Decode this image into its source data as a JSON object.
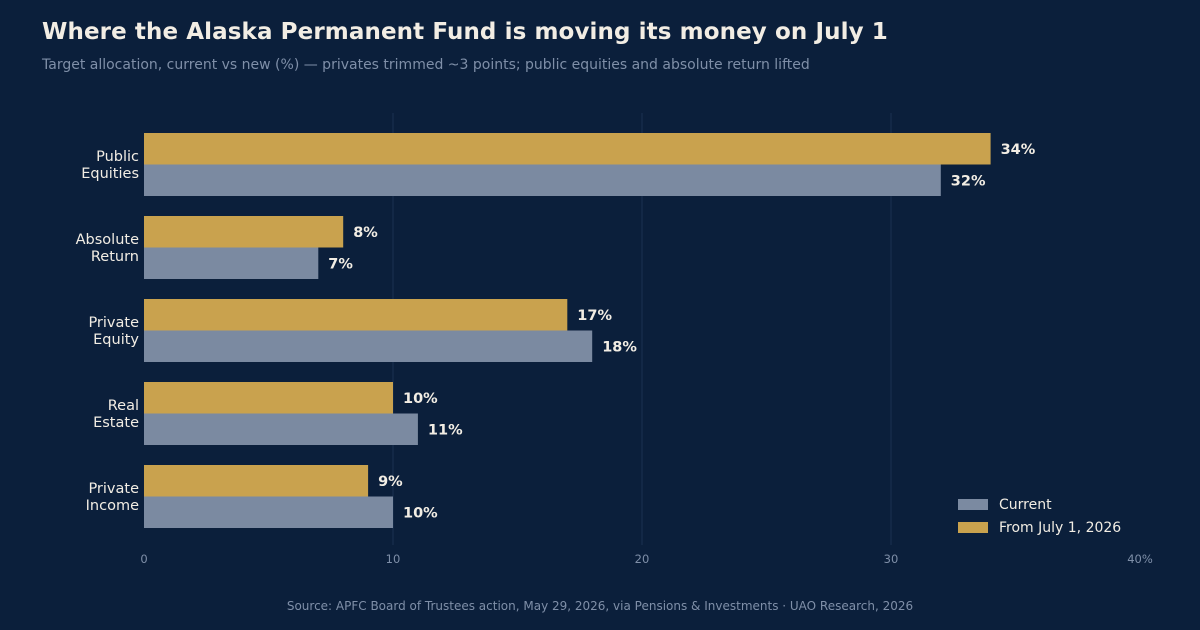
{
  "header": {
    "title": "Where the Alaska Permanent Fund is moving its money on July 1",
    "subtitle": "Target allocation, current vs new (%) — privates trimmed ~3 points; public equities and absolute return lifted"
  },
  "footer": {
    "source": "Source: APFC Board of Trustees action, May 29, 2026, via Pensions & Investments  ·  UAO Research, 2026"
  },
  "colors": {
    "background": "#0b1f3b",
    "current": "#7b8aa1",
    "new": "#c9a24e",
    "grid": "#1b3050"
  },
  "chart_data": {
    "type": "bar",
    "orientation": "horizontal",
    "categories": [
      [
        "Public",
        "Equities"
      ],
      [
        "Absolute",
        "Return"
      ],
      [
        "Private",
        "Equity"
      ],
      [
        "Real",
        "Estate"
      ],
      [
        "Private",
        "Income"
      ]
    ],
    "series": [
      {
        "name": "From July 1, 2026",
        "values": [
          34,
          8,
          17,
          10,
          9
        ],
        "color": "#c9a24e"
      },
      {
        "name": "Current",
        "values": [
          32,
          7,
          18,
          11,
          10
        ],
        "color": "#7b8aa1"
      }
    ],
    "value_suffix": "%",
    "xlim": [
      0,
      40
    ],
    "xticks": [
      0,
      10,
      20,
      30,
      40
    ],
    "xtick_labels": [
      "0",
      "10",
      "20",
      "30",
      "40%"
    ],
    "grid": true,
    "legend": {
      "position": "bottom-right",
      "order": [
        "Current",
        "From July 1, 2026"
      ]
    }
  }
}
